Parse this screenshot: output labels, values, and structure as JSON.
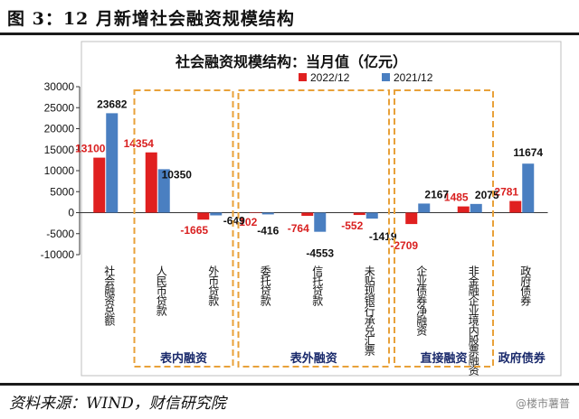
{
  "figure": {
    "title": "图 3：12 月新增社会融资规模结构",
    "source": "资料来源：WIND，财信研究院",
    "watermark": "@楼市薯普"
  },
  "colors": {
    "series_2022": "#e02020",
    "series_2021": "#4a7fc1",
    "box": "#e8a13a",
    "label_2022": "#d92020"
  },
  "chart_data": {
    "type": "bar",
    "title": "社会融资规模结构：当月值（亿元）",
    "categories": [
      "社会融资总额",
      "人民币贷款",
      "外币贷款",
      "委托贷款",
      "信托贷款",
      "未贴现银行承兑汇票",
      "企业债券净融资",
      "非金融企业境内股票融资",
      "政府债券"
    ],
    "series": [
      {
        "name": "2022/12",
        "values": [
          13100,
          14354,
          -1665,
          -102,
          -764,
          -552,
          -2709,
          1485,
          2781
        ]
      },
      {
        "name": "2021/12",
        "values": [
          23682,
          10350,
          -649,
          -416,
          -4553,
          -1419,
          2167,
          2075,
          11674
        ]
      }
    ],
    "ylim": [
      -10000,
      30000
    ],
    "yticks": [
      -10000,
      -5000,
      0,
      5000,
      10000,
      15000,
      20000,
      25000,
      30000
    ],
    "legend_position": "top-right",
    "group_labels": [
      "表内融资",
      "表外融资",
      "直接融资",
      "政府债券"
    ]
  }
}
